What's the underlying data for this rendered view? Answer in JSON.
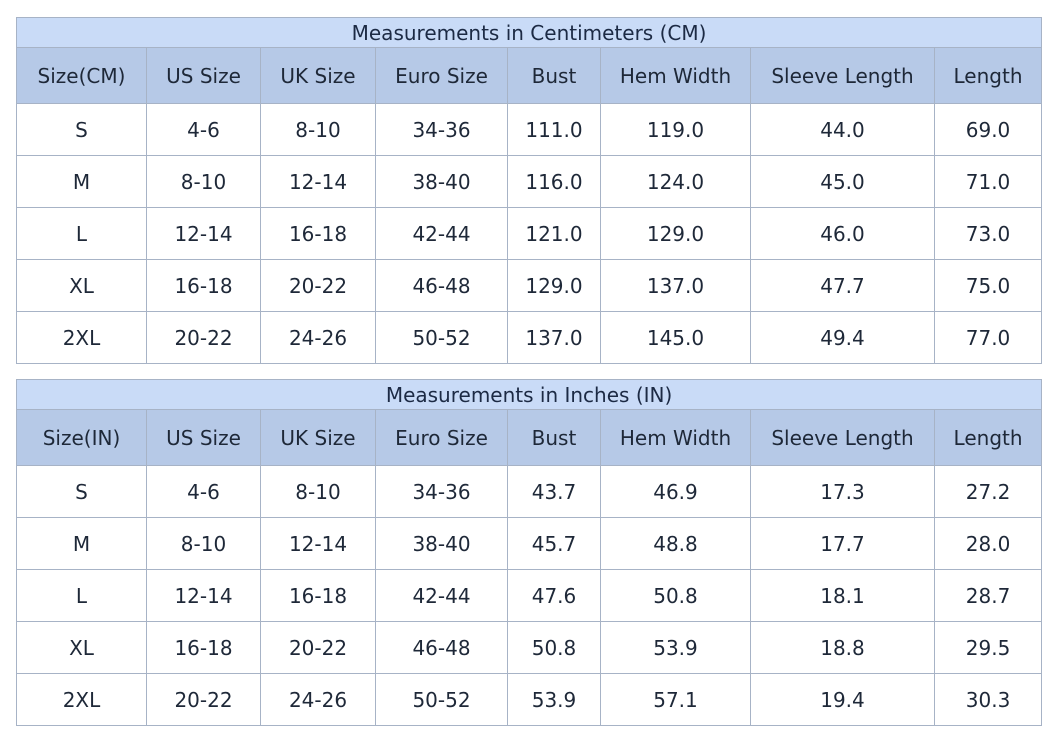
{
  "tables": [
    {
      "title": "Measurements in Centimeters (CM)",
      "header": [
        "Size(CM)",
        "US Size",
        "UK Size",
        "Euro Size",
        "Bust",
        "Hem Width",
        "Sleeve Length",
        "Length"
      ],
      "rows": [
        [
          "S",
          "4-6",
          "8-10",
          "34-36",
          "111.0",
          "119.0",
          "44.0",
          "69.0"
        ],
        [
          "M",
          "8-10",
          "12-14",
          "38-40",
          "116.0",
          "124.0",
          "45.0",
          "71.0"
        ],
        [
          "L",
          "12-14",
          "16-18",
          "42-44",
          "121.0",
          "129.0",
          "46.0",
          "73.0"
        ],
        [
          "XL",
          "16-18",
          "20-22",
          "46-48",
          "129.0",
          "137.0",
          "47.7",
          "75.0"
        ],
        [
          "2XL",
          "20-22",
          "24-26",
          "50-52",
          "137.0",
          "145.0",
          "49.4",
          "77.0"
        ]
      ]
    },
    {
      "title": "Measurements in Inches (IN)",
      "header": [
        "Size(IN)",
        "US Size",
        "UK Size",
        "Euro Size",
        "Bust",
        "Hem Width",
        "Sleeve Length",
        "Length"
      ],
      "rows": [
        [
          "S",
          "4-6",
          "8-10",
          "34-36",
          "43.7",
          "46.9",
          "17.3",
          "27.2"
        ],
        [
          "M",
          "8-10",
          "12-14",
          "38-40",
          "45.7",
          "48.8",
          "17.7",
          "28.0"
        ],
        [
          "L",
          "12-14",
          "16-18",
          "42-44",
          "47.6",
          "50.8",
          "18.1",
          "28.7"
        ],
        [
          "XL",
          "16-18",
          "20-22",
          "46-48",
          "50.8",
          "53.9",
          "18.8",
          "29.5"
        ],
        [
          "2XL",
          "20-22",
          "24-26",
          "50-52",
          "53.9",
          "57.1",
          "19.4",
          "30.3"
        ]
      ]
    }
  ]
}
